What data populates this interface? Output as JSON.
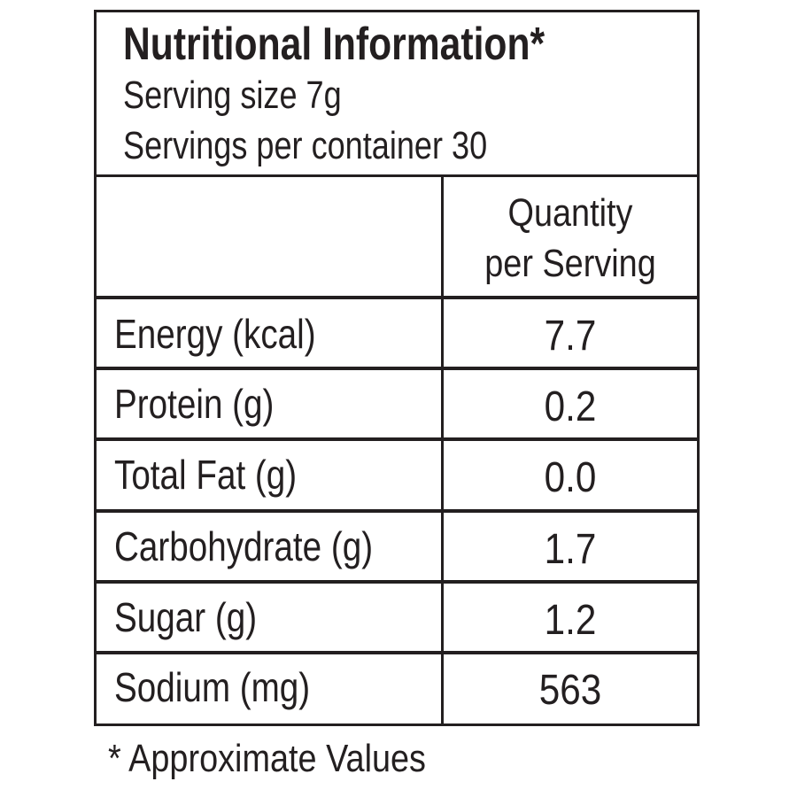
{
  "header": {
    "title": "Nutritional Information*",
    "serving_size": "Serving size 7g",
    "servings_per_container": "Servings per container 30"
  },
  "table": {
    "column_header": [
      "Quantity",
      "per Serving"
    ],
    "rows": [
      {
        "label": "Energy (kcal)",
        "value": "7.7"
      },
      {
        "label": "Protein (g)",
        "value": "0.2"
      },
      {
        "label": "Total Fat (g)",
        "value": "0.0"
      },
      {
        "label": "Carbohydrate (g)",
        "value": "1.7"
      },
      {
        "label": "Sugar (g)",
        "value": "1.2"
      },
      {
        "label": "Sodium (mg)",
        "value": "563"
      }
    ]
  },
  "footnote": "* Approximate Values",
  "colors": {
    "ink": "#231f20",
    "background": "#ffffff"
  }
}
